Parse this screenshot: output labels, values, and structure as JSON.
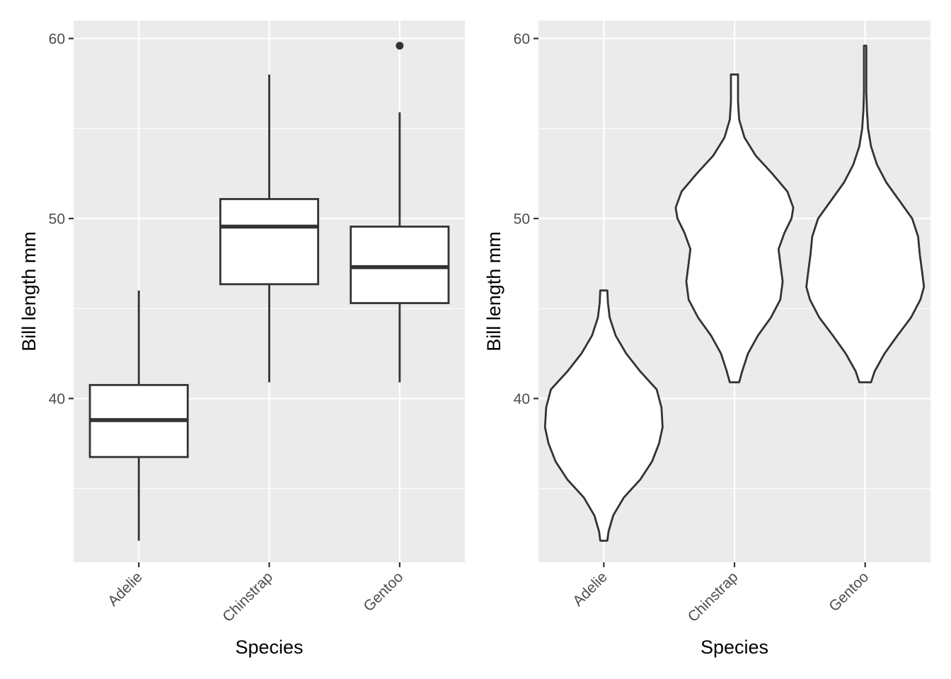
{
  "colors": {
    "panel_background": "#EBEBEB",
    "gridline": "#FFFFFF",
    "geom_line": "#333333",
    "geom_fill": "#FFFFFF",
    "tick": "#333333",
    "tick_label": "#4D4D4D"
  },
  "chart_data": [
    {
      "type": "boxplot",
      "xlabel": "Species",
      "ylabel": "Bill length mm",
      "categories": [
        "Adelie",
        "Chinstrap",
        "Gentoo"
      ],
      "ylim": [
        30.9,
        61.0
      ],
      "yticks": [
        40,
        50,
        60
      ],
      "grid": true,
      "x_tick_label_rotation": 45,
      "boxes": [
        {
          "category": "Adelie",
          "lower_whisker": 32.1,
          "q1": 36.75,
          "median": 38.8,
          "q3": 40.75,
          "upper_whisker": 46.0,
          "outliers": []
        },
        {
          "category": "Chinstrap",
          "lower_whisker": 40.9,
          "q1": 46.35,
          "median": 49.55,
          "q3": 51.08,
          "upper_whisker": 58.0,
          "outliers": []
        },
        {
          "category": "Gentoo",
          "lower_whisker": 40.9,
          "q1": 45.3,
          "median": 47.3,
          "q3": 49.55,
          "upper_whisker": 55.9,
          "outliers": [
            59.6
          ]
        }
      ]
    },
    {
      "type": "violin",
      "xlabel": "Species",
      "ylabel": "Bill length mm",
      "categories": [
        "Adelie",
        "Chinstrap",
        "Gentoo"
      ],
      "ylim": [
        30.9,
        61.0
      ],
      "yticks": [
        40,
        50,
        60
      ],
      "grid": true,
      "x_tick_label_rotation": 45,
      "violins": [
        {
          "category": "Adelie",
          "range": [
            32.1,
            46.0
          ],
          "density_profile": [
            {
              "y": 32.1,
              "w": 0.06
            },
            {
              "y": 32.6,
              "w": 0.08
            },
            {
              "y": 33.5,
              "w": 0.16
            },
            {
              "y": 34.5,
              "w": 0.34
            },
            {
              "y": 35.5,
              "w": 0.62
            },
            {
              "y": 36.5,
              "w": 0.82
            },
            {
              "y": 37.5,
              "w": 0.94
            },
            {
              "y": 38.4,
              "w": 1.0
            },
            {
              "y": 39.5,
              "w": 0.98
            },
            {
              "y": 40.5,
              "w": 0.9
            },
            {
              "y": 41.5,
              "w": 0.62
            },
            {
              "y": 42.5,
              "w": 0.38
            },
            {
              "y": 43.5,
              "w": 0.2
            },
            {
              "y": 44.5,
              "w": 0.1
            },
            {
              "y": 45.3,
              "w": 0.07
            },
            {
              "y": 46.0,
              "w": 0.06
            }
          ]
        },
        {
          "category": "Chinstrap",
          "range": [
            40.9,
            58.0
          ],
          "density_profile": [
            {
              "y": 40.9,
              "w": 0.08
            },
            {
              "y": 41.5,
              "w": 0.13
            },
            {
              "y": 42.5,
              "w": 0.23
            },
            {
              "y": 43.5,
              "w": 0.4
            },
            {
              "y": 44.5,
              "w": 0.62
            },
            {
              "y": 45.5,
              "w": 0.78
            },
            {
              "y": 46.5,
              "w": 0.82
            },
            {
              "y": 47.5,
              "w": 0.78
            },
            {
              "y": 48.3,
              "w": 0.75
            },
            {
              "y": 49.2,
              "w": 0.85
            },
            {
              "y": 50.0,
              "w": 0.97
            },
            {
              "y": 50.6,
              "w": 1.0
            },
            {
              "y": 51.5,
              "w": 0.9
            },
            {
              "y": 52.5,
              "w": 0.64
            },
            {
              "y": 53.5,
              "w": 0.36
            },
            {
              "y": 54.5,
              "w": 0.17
            },
            {
              "y": 55.5,
              "w": 0.08
            },
            {
              "y": 56.5,
              "w": 0.06
            },
            {
              "y": 57.5,
              "w": 0.06
            },
            {
              "y": 58.0,
              "w": 0.06
            }
          ]
        },
        {
          "category": "Gentoo",
          "range": [
            40.9,
            59.6
          ],
          "density_profile": [
            {
              "y": 40.9,
              "w": 0.1
            },
            {
              "y": 41.5,
              "w": 0.16
            },
            {
              "y": 42.5,
              "w": 0.33
            },
            {
              "y": 43.5,
              "w": 0.55
            },
            {
              "y": 44.5,
              "w": 0.78
            },
            {
              "y": 45.5,
              "w": 0.94
            },
            {
              "y": 46.2,
              "w": 1.0
            },
            {
              "y": 47.0,
              "w": 0.97
            },
            {
              "y": 48.0,
              "w": 0.93
            },
            {
              "y": 49.0,
              "w": 0.9
            },
            {
              "y": 50.0,
              "w": 0.8
            },
            {
              "y": 51.0,
              "w": 0.58
            },
            {
              "y": 52.0,
              "w": 0.36
            },
            {
              "y": 53.0,
              "w": 0.2
            },
            {
              "y": 54.0,
              "w": 0.1
            },
            {
              "y": 55.0,
              "w": 0.05
            },
            {
              "y": 56.0,
              "w": 0.03
            },
            {
              "y": 57.0,
              "w": 0.02
            },
            {
              "y": 58.0,
              "w": 0.02
            },
            {
              "y": 59.0,
              "w": 0.02
            },
            {
              "y": 59.6,
              "w": 0.02
            }
          ]
        }
      ]
    }
  ]
}
